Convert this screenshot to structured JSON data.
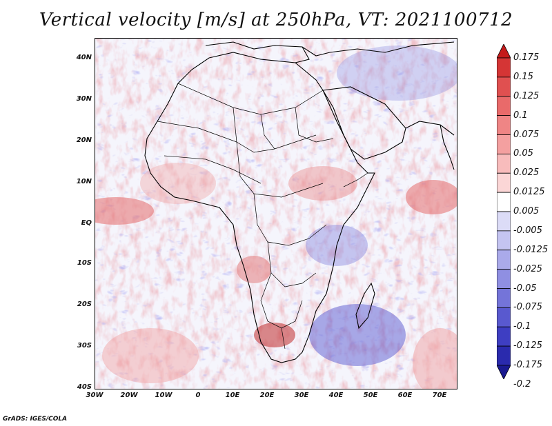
{
  "title": "Vertical velocity [m/s] at 250hPa, VT: 2021100712",
  "credit": "GrADS: IGES/COLA",
  "lat_labels": [
    "40N",
    "30N",
    "20N",
    "10N",
    "EQ",
    "10S",
    "20S",
    "30S",
    "40S"
  ],
  "lon_labels": [
    "30W",
    "20W",
    "10W",
    "0",
    "10E",
    "20E",
    "30E",
    "40E",
    "50E",
    "60E",
    "70E"
  ],
  "colorbar": {
    "labels": [
      "0.175",
      "0.15",
      "0.125",
      "0.1",
      "0.075",
      "0.05",
      "0.025",
      "0.0125",
      "0.005",
      "-0.005",
      "-0.0125",
      "-0.025",
      "-0.05",
      "-0.075",
      "-0.1",
      "-0.125",
      "-0.175",
      "-0.2"
    ],
    "colors": [
      "#c41a1a",
      "#d53535",
      "#e05050",
      "#e96a6a",
      "#ef8585",
      "#f4a0a0",
      "#f8bcbc",
      "#fbd6d6",
      "#ffffff",
      "#dcdcf7",
      "#c4c4f1",
      "#aaaaea",
      "#8f8fe2",
      "#7474d9",
      "#5959cf",
      "#3e3ec2",
      "#2a2aad",
      "#1a1a90"
    ]
  },
  "map": {
    "projection": "lat-lon",
    "lon_range": [
      -30,
      75
    ],
    "lat_range": [
      -40,
      45
    ],
    "variable": "vertical velocity",
    "level": "250hPa"
  }
}
